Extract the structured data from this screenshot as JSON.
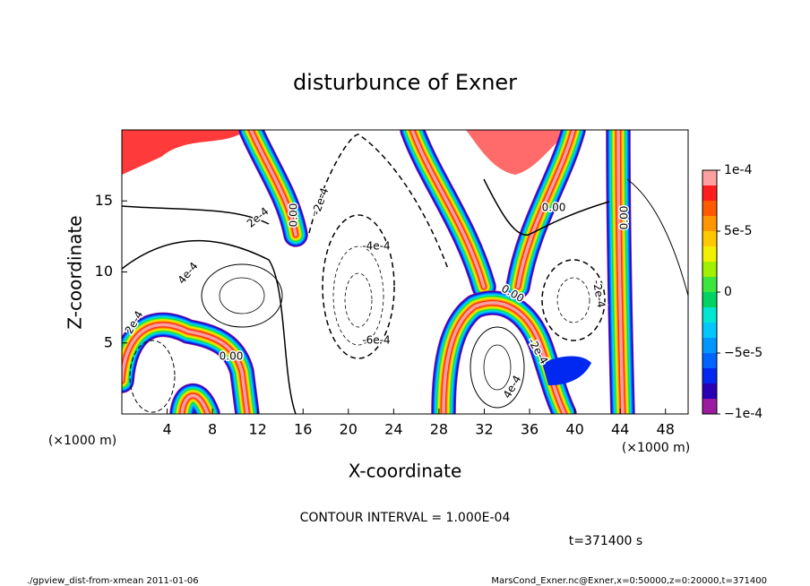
{
  "chart_data": {
    "type": "contour",
    "title": "disturbunce of Exner",
    "x_label": "X-coordinate",
    "y_label": "Z-coordinate",
    "x_unit": "(×1000 m)",
    "xlim": [
      0,
      50
    ],
    "ylim": [
      0,
      20
    ],
    "xticks": [
      4,
      8,
      12,
      16,
      20,
      24,
      28,
      32,
      36,
      40,
      44,
      48
    ],
    "yticks": [
      5,
      10,
      15
    ],
    "contour_labels": [
      "2e-4",
      "0.00",
      "-2e-4",
      "-4e-4",
      "4e-4",
      "2e-4",
      "0.00",
      "-6e-4",
      "0.00",
      "0.00",
      "-2e-4",
      "0.00",
      "-2e-4",
      "4e-4"
    ],
    "colorbar": {
      "lim": [
        -0.0001,
        0.0001
      ],
      "ticks": [
        {
          "value": -0.0001,
          "label": "−1e-4"
        },
        {
          "value": -5e-05,
          "label": "−5e-5"
        },
        0,
        {
          "value": 5e-05,
          "label": "5e-5"
        },
        {
          "value": 0.0001,
          "label": "1e-4"
        }
      ],
      "colors": [
        "#9b1aa0",
        "#2a00b4",
        "#0028f0",
        "#0064ff",
        "#0096ff",
        "#00c8ff",
        "#00e6d2",
        "#00d264",
        "#3ce63c",
        "#a0f000",
        "#f0f000",
        "#ffc800",
        "#ff9600",
        "#ff5a00",
        "#ff1e1e",
        "#ffa0a0"
      ]
    },
    "contour_interval": "CONTOUR INTERVAL = 1.000E-04",
    "time": "t=371400 s",
    "footer_left": "./gpview_dist-from-xmean  2011-01-06",
    "footer_right": "MarsCond_Exner.nc@Exner,x=0:50000,z=0:20000,t=371400"
  }
}
